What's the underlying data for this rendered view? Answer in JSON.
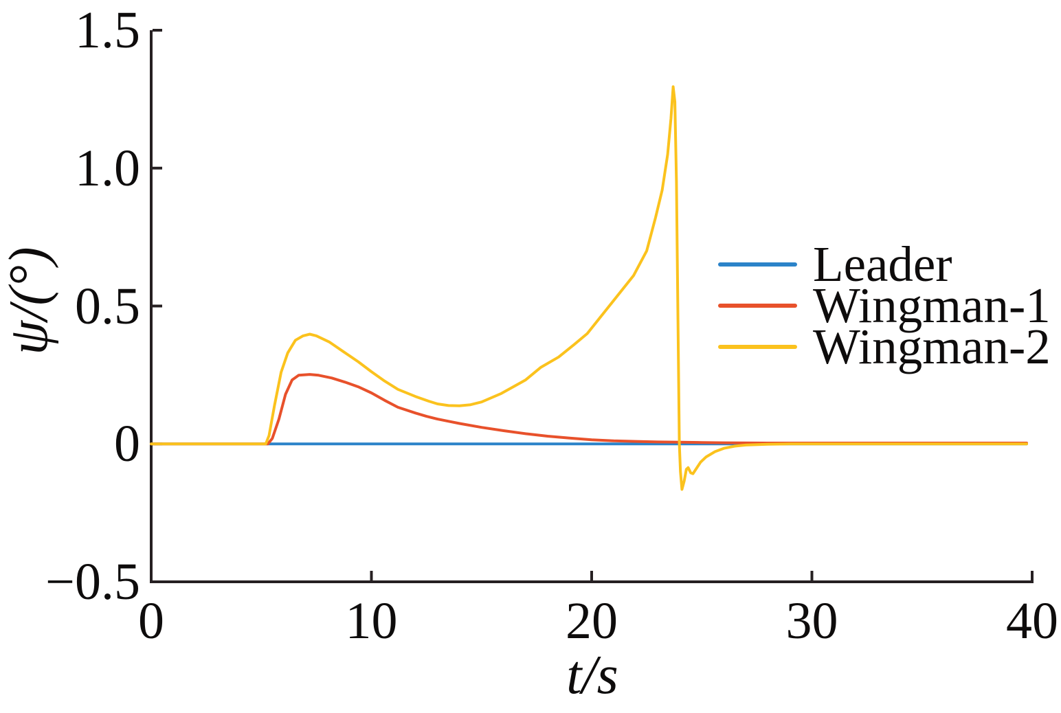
{
  "chart_data": {
    "type": "line",
    "title": "",
    "xlabel": "t/s",
    "ylabel": "ψ/(°)",
    "xlim": [
      0,
      40
    ],
    "ylim": [
      -0.5,
      1.5
    ],
    "grid": false,
    "axis_color": "#262022",
    "text_color": "#0e0c0c",
    "xticks": {
      "values": [
        0,
        10,
        20,
        30,
        40
      ],
      "labels": [
        "0",
        "10",
        "20",
        "30",
        "40"
      ]
    },
    "yticks": {
      "values": [
        1.5,
        1.0,
        0.5,
        0,
        -0.5
      ],
      "labels": [
        "1.5",
        "1.0",
        "0.5",
        "0",
        "−0.5"
      ]
    },
    "legend": {
      "position": "center-right",
      "entries": [
        "Leader",
        "Wingman-1",
        "Wingman-2"
      ]
    },
    "series": [
      {
        "name": "Leader",
        "color": "#2b83c9",
        "points": [
          [
            0,
            0
          ],
          [
            39.75,
            0
          ]
        ]
      },
      {
        "name": "Wingman-1",
        "color": "#e8512b",
        "points": [
          [
            0,
            0
          ],
          [
            5.3,
            0
          ],
          [
            5.5,
            0.02
          ],
          [
            5.8,
            0.09
          ],
          [
            6.1,
            0.18
          ],
          [
            6.4,
            0.232
          ],
          [
            6.7,
            0.249
          ],
          [
            7.2,
            0.252
          ],
          [
            7.6,
            0.249
          ],
          [
            8.2,
            0.239
          ],
          [
            8.8,
            0.224
          ],
          [
            9.4,
            0.207
          ],
          [
            10,
            0.185
          ],
          [
            10.6,
            0.158
          ],
          [
            11.2,
            0.133
          ],
          [
            12,
            0.112
          ],
          [
            12.5,
            0.1
          ],
          [
            13,
            0.09
          ],
          [
            13.5,
            0.082
          ],
          [
            14,
            0.074
          ],
          [
            15,
            0.06
          ],
          [
            16,
            0.048
          ],
          [
            17,
            0.037
          ],
          [
            18,
            0.028
          ],
          [
            19,
            0.021
          ],
          [
            20,
            0.015
          ],
          [
            21,
            0.011
          ],
          [
            22,
            0.009
          ],
          [
            23,
            0.007
          ],
          [
            24,
            0.006
          ],
          [
            25,
            0.005
          ],
          [
            26,
            0.004
          ],
          [
            28,
            0.003
          ],
          [
            30,
            0.003
          ],
          [
            39.75,
            0.003
          ]
        ]
      },
      {
        "name": "Wingman-2",
        "color": "#fbc21d",
        "points": [
          [
            0,
            0
          ],
          [
            5.2,
            0
          ],
          [
            5.35,
            0.03
          ],
          [
            5.6,
            0.14
          ],
          [
            5.9,
            0.26
          ],
          [
            6.2,
            0.33
          ],
          [
            6.55,
            0.376
          ],
          [
            6.9,
            0.392
          ],
          [
            7.2,
            0.398
          ],
          [
            7.5,
            0.392
          ],
          [
            8.1,
            0.369
          ],
          [
            8.7,
            0.336
          ],
          [
            9.4,
            0.298
          ],
          [
            10,
            0.262
          ],
          [
            10.6,
            0.228
          ],
          [
            11.2,
            0.198
          ],
          [
            12,
            0.172
          ],
          [
            12.6,
            0.155
          ],
          [
            13,
            0.145
          ],
          [
            13.5,
            0.139
          ],
          [
            14,
            0.138
          ],
          [
            14.5,
            0.142
          ],
          [
            15,
            0.152
          ],
          [
            15.9,
            0.183
          ],
          [
            17,
            0.232
          ],
          [
            17.7,
            0.278
          ],
          [
            18.5,
            0.315
          ],
          [
            19.2,
            0.36
          ],
          [
            19.8,
            0.4
          ],
          [
            20.8,
            0.5
          ],
          [
            21.9,
            0.61
          ],
          [
            22.5,
            0.7
          ],
          [
            22.9,
            0.82
          ],
          [
            23.2,
            0.92
          ],
          [
            23.45,
            1.05
          ],
          [
            23.6,
            1.18
          ],
          [
            23.7,
            1.295
          ],
          [
            23.78,
            1.24
          ],
          [
            23.85,
            0.95
          ],
          [
            23.92,
            0.45
          ],
          [
            23.98,
            0.0
          ],
          [
            24.03,
            -0.1
          ],
          [
            24.1,
            -0.165
          ],
          [
            24.2,
            -0.135
          ],
          [
            24.3,
            -0.092
          ],
          [
            24.38,
            -0.086
          ],
          [
            24.5,
            -0.105
          ],
          [
            24.6,
            -0.108
          ],
          [
            24.75,
            -0.09
          ],
          [
            24.95,
            -0.066
          ],
          [
            25.2,
            -0.047
          ],
          [
            25.6,
            -0.028
          ],
          [
            26,
            -0.016
          ],
          [
            26.5,
            -0.008
          ],
          [
            27,
            -0.004
          ],
          [
            28,
            -0.001
          ],
          [
            29,
            0
          ],
          [
            39.75,
            0
          ]
        ]
      }
    ]
  }
}
